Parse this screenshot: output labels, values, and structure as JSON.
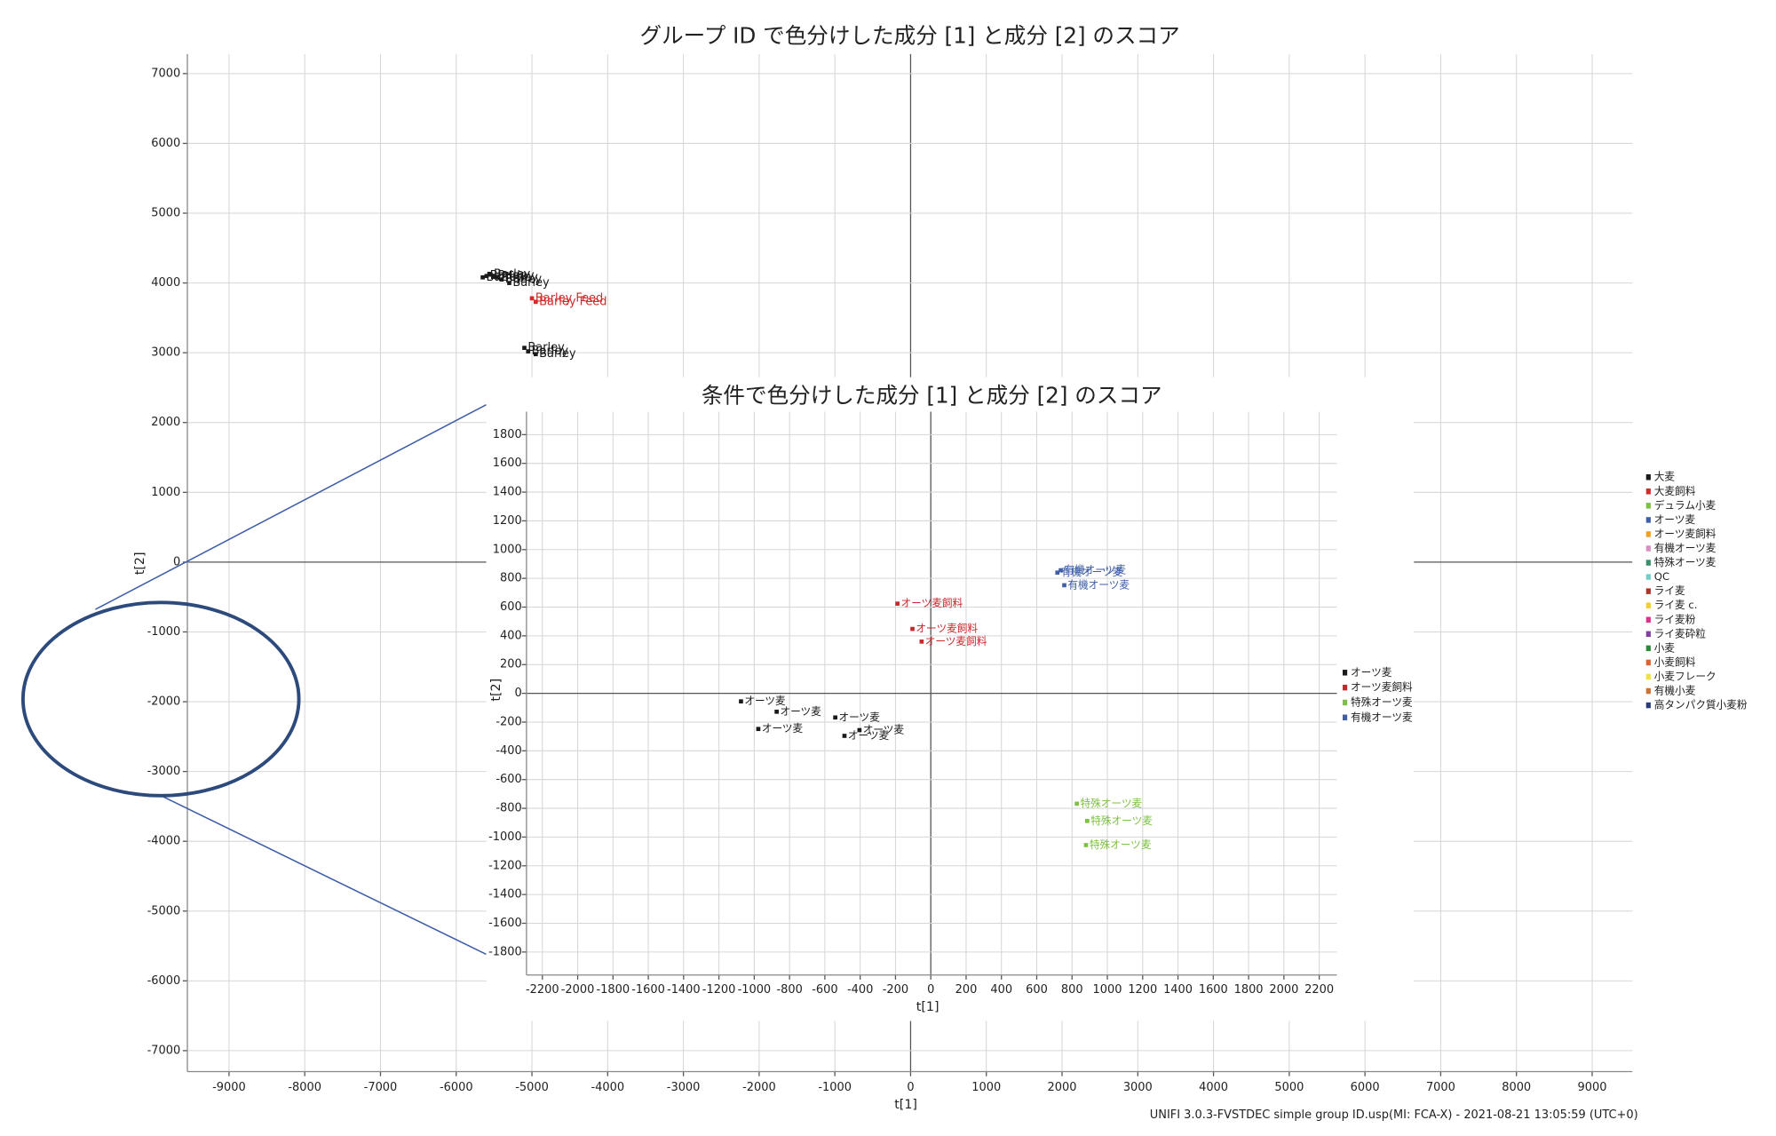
{
  "chart_data": [
    {
      "type": "scatter",
      "title": "グループ ID で色分けした成分 [1] と成分 [2] のスコア",
      "x_label": "t[1]",
      "y_label": "t[2]",
      "xlim": [
        -9550,
        9530
      ],
      "ylim": [
        -7300,
        7280
      ],
      "xticks": [
        -9000,
        -8000,
        -7000,
        -6000,
        -5000,
        -4000,
        -3000,
        -2000,
        -1000,
        0,
        1000,
        2000,
        3000,
        4000,
        5000,
        6000,
        7000,
        8000,
        9000
      ],
      "yticks": [
        -7000,
        -6000,
        -5000,
        -4000,
        -3000,
        -2000,
        -1000,
        0,
        1000,
        2000,
        3000,
        4000,
        5000,
        6000,
        7000
      ],
      "grid": true,
      "legend": "right",
      "series": [
        {
          "name": "大麦",
          "color": "#1a1a1a",
          "x": [
            -5650,
            -5600,
            -5550,
            -5500,
            -5450,
            -5400,
            -5300,
            -5100,
            -5050,
            -4950
          ],
          "y": [
            4080,
            4100,
            4120,
            4100,
            4080,
            4050,
            4000,
            3070,
            3020,
            2980
          ],
          "labels": [
            "Barley",
            "Barley",
            "Barley",
            "Barley",
            "Barley",
            "Barley",
            "Barley",
            "Barley",
            "Barley",
            "Barley"
          ]
        },
        {
          "name": "大麦飼料",
          "color": "#d42a2a",
          "x": [
            -5000,
            -4950
          ],
          "y": [
            3780,
            3730
          ],
          "labels": [
            "Barley Feed",
            "Barley Feed"
          ]
        },
        {
          "name": "デュラム小麦",
          "color": "#7dc142",
          "x": [],
          "y": [],
          "labels": []
        },
        {
          "name": "オーツ麦",
          "color": "#3f5fa8",
          "x": [],
          "y": [],
          "labels": []
        },
        {
          "name": "オーツ麦飼料",
          "color": "#f0a020",
          "x": [],
          "y": [],
          "labels": []
        },
        {
          "name": "有機オーツ麦",
          "color": "#d98fc0",
          "x": [],
          "y": [],
          "labels": []
        },
        {
          "name": "特殊オーツ麦",
          "color": "#3a8f6a",
          "x": [],
          "y": [],
          "labels": []
        },
        {
          "name": "QC",
          "color": "#6fd0c8",
          "x": [],
          "y": [],
          "labels": []
        },
        {
          "name": "ライ麦",
          "color": "#b0302a",
          "x": [],
          "y": [],
          "labels": []
        },
        {
          "name": "ライ麦 c.",
          "color": "#f0d030",
          "x": [],
          "y": [],
          "labels": []
        },
        {
          "name": "ライ麦粉",
          "color": "#e0308a",
          "x": [],
          "y": [],
          "labels": []
        },
        {
          "name": "ライ麦砕粒",
          "color": "#8040a0",
          "x": [],
          "y": [],
          "labels": []
        },
        {
          "name": "小麦",
          "color": "#2a8a3a",
          "x": [],
          "y": [],
          "labels": []
        },
        {
          "name": "小麦飼料",
          "color": "#e06030",
          "x": [],
          "y": [],
          "labels": []
        },
        {
          "name": "小麦フレーク",
          "color": "#f0e040",
          "x": [],
          "y": [],
          "labels": []
        },
        {
          "name": "有機小麦",
          "color": "#d07030",
          "x": [],
          "y": [],
          "labels": []
        },
        {
          "name": "高タンパク質小麦粉",
          "color": "#2a3a7a",
          "x": [],
          "y": [],
          "labels": []
        }
      ]
    },
    {
      "type": "scatter",
      "title": "条件で色分けした成分 [1] と成分 [2] のスコア",
      "x_label": "t[1]",
      "y_label": "t[2]",
      "xlim": [
        -2290,
        2300
      ],
      "ylim": [
        -1960,
        1960
      ],
      "xticks": [
        -2200,
        -2000,
        -1800,
        -1600,
        -1400,
        -1200,
        -1000,
        -800,
        -600,
        -400,
        -200,
        0,
        200,
        400,
        600,
        800,
        1000,
        1200,
        1400,
        1600,
        1800,
        2000,
        2200
      ],
      "yticks": [
        -1800,
        -1600,
        -1400,
        -1200,
        -1000,
        -800,
        -600,
        -400,
        -200,
        0,
        200,
        400,
        600,
        800,
        1000,
        1200,
        1400,
        1600,
        1800
      ],
      "grid": true,
      "legend": "right",
      "series": [
        {
          "name": "オーツ麦",
          "color": "#1a1a1a",
          "x": [
            -1075,
            -873,
            -977,
            -541,
            -489,
            -404
          ],
          "y": [
            -56,
            -128,
            -248,
            -168,
            -296,
            -256
          ],
          "labels": [
            "オーツ麦",
            "オーツ麦",
            "オーツ麦",
            "オーツ麦",
            "オーツ麦",
            "オーツ麦"
          ]
        },
        {
          "name": "オーツ麦飼料",
          "color": "#c8282d",
          "x": [
            -189,
            -104,
            -52
          ],
          "y": [
            624,
            448,
            360
          ],
          "labels": [
            "オーツ麦飼料",
            "オーツ麦飼料",
            "オーツ麦飼料"
          ]
        },
        {
          "name": "特殊オーツ麦",
          "color": "#7dc142",
          "x": [
            827,
            886,
            879
          ],
          "y": [
            -768,
            -888,
            -1056
          ],
          "labels": [
            "特殊オーツ麦",
            "特殊オーツ麦",
            "特殊オーツ麦"
          ]
        },
        {
          "name": "有機オーツ麦",
          "color": "#3f5fa8",
          "x": [
            717,
            736,
            756
          ],
          "y": [
            840,
            856,
            752
          ],
          "labels": [
            "有機オーツ麦",
            "有機オーツ麦",
            "有機オーツ麦"
          ]
        }
      ]
    }
  ],
  "footer": "UNIFI 3.0.3-FVSTDEC simple group ID.usp(MI: FCA-X) - 2021-08-21 13:05:59 (UTC+0)"
}
